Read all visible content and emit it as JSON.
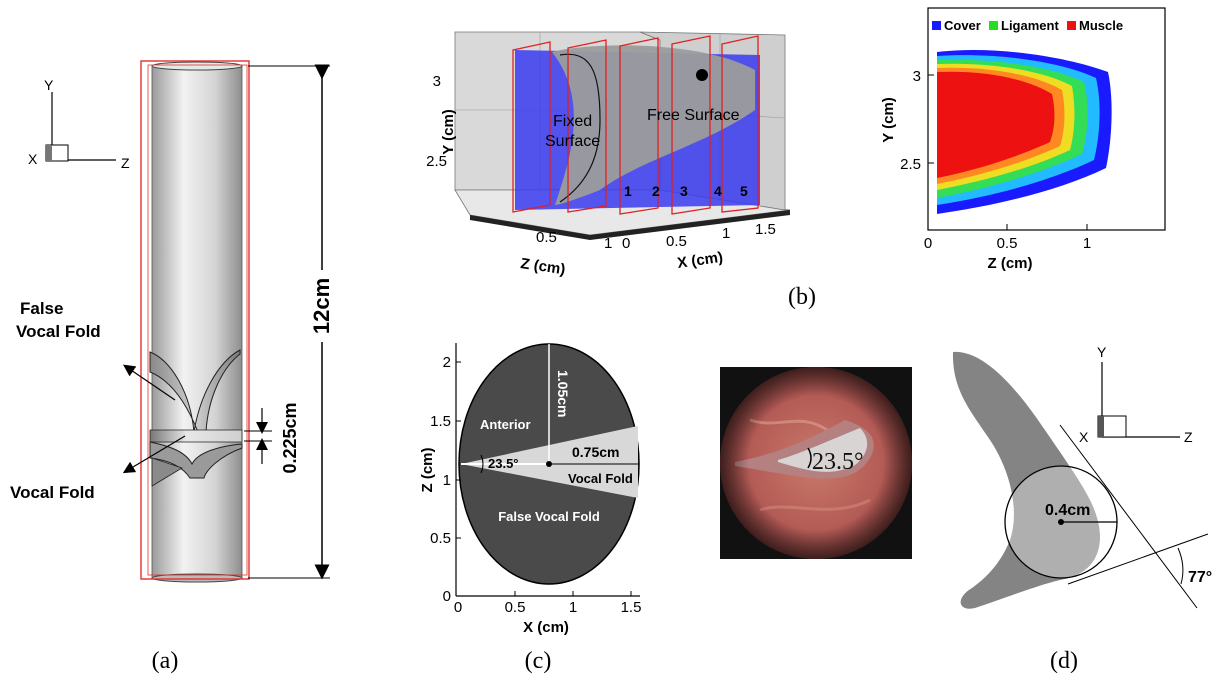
{
  "panel_labels": {
    "a": "(a)",
    "b": "(b)",
    "c": "(c)",
    "d": "(d)"
  },
  "panel_a": {
    "axis_y": "Y",
    "axis_x": "X",
    "axis_z": "Z",
    "length_label": "12cm",
    "gap_label": "0.225cm",
    "false_vocal_fold_line1": "False",
    "false_vocal_fold_line2": "Vocal Fold",
    "vocal_fold": "Vocal Fold"
  },
  "panel_b_3d": {
    "y_axis_label": "Y (cm)",
    "y_ticks": [
      "2.5",
      "3"
    ],
    "z_axis_label": "Z (cm)",
    "z_ticks": [
      "0.5",
      "1"
    ],
    "x_axis_label": "X (cm)",
    "x_ticks": [
      "0",
      "0.5",
      "1",
      "1.5"
    ],
    "fixed_surface_line1": "Fixed",
    "fixed_surface_line2": "Surface",
    "free_surface": "Free Surface",
    "slice_numbers": [
      "1",
      "2",
      "3",
      "4",
      "5"
    ]
  },
  "panel_b_section": {
    "legend": [
      {
        "label": "Cover",
        "color": "#1a1aff"
      },
      {
        "label": "Ligament",
        "color": "#22dd22"
      },
      {
        "label": "Muscle",
        "color": "#ee1111"
      }
    ],
    "y_axis_label": "Y (cm)",
    "y_ticks": [
      "2.5",
      "3"
    ],
    "x_axis_label": "Z (cm)",
    "x_ticks": [
      "0",
      "0.5",
      "1"
    ]
  },
  "panel_c": {
    "x_axis_label": "X (cm)",
    "y_axis_label": "Z (cm)",
    "x_ticks": [
      "0",
      "0.5",
      "1",
      "1.5"
    ],
    "y_ticks": [
      "0",
      "0.5",
      "1",
      "1.5",
      "2"
    ],
    "anterior": "Anterior",
    "angle": "23.5°",
    "radius_vertical": "1.05cm",
    "radius_horizontal": "0.75cm",
    "vocal_fold": "Vocal Fold",
    "false_vocal_fold": "False Vocal Fold"
  },
  "photo": {
    "angle": "23.5°"
  },
  "panel_d": {
    "axis_y": "Y",
    "axis_x": "X",
    "axis_z": "Z",
    "radius": "0.4cm",
    "angle": "77°"
  }
}
